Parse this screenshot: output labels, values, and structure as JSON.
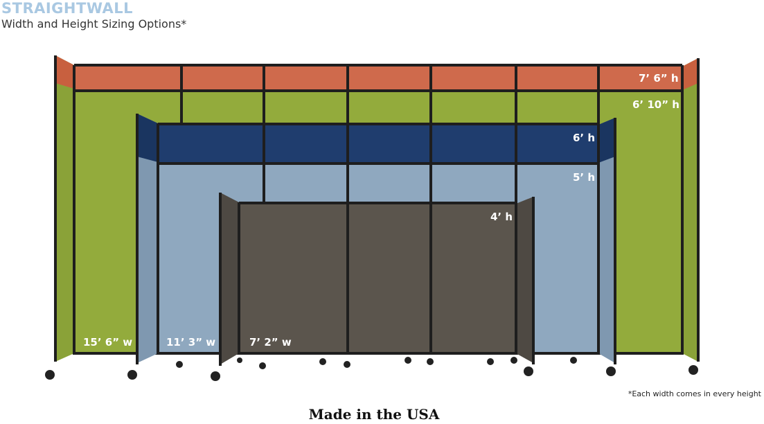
{
  "header": {
    "brand": "STRAIGHTWALL",
    "subtitle": "Width and Height Sizing Options*"
  },
  "heights": [
    "7’ 6” h",
    "6’ 10” h",
    "6’ h",
    "5’ h",
    "4’ h"
  ],
  "widths": [
    "15’ 6” w",
    "11’ 3” w",
    "7’ 2” w"
  ],
  "footnote": "*Each width comes in every height",
  "footer": "Made in the USA",
  "colors": {
    "orange": "#cf6a4c",
    "green": "#93ab3c",
    "navy": "#1f3d6e",
    "lightblue": "#8fa8bf",
    "brown": "#5b554d",
    "frame": "#1e1e1e",
    "brand": "#a9c8e2"
  }
}
